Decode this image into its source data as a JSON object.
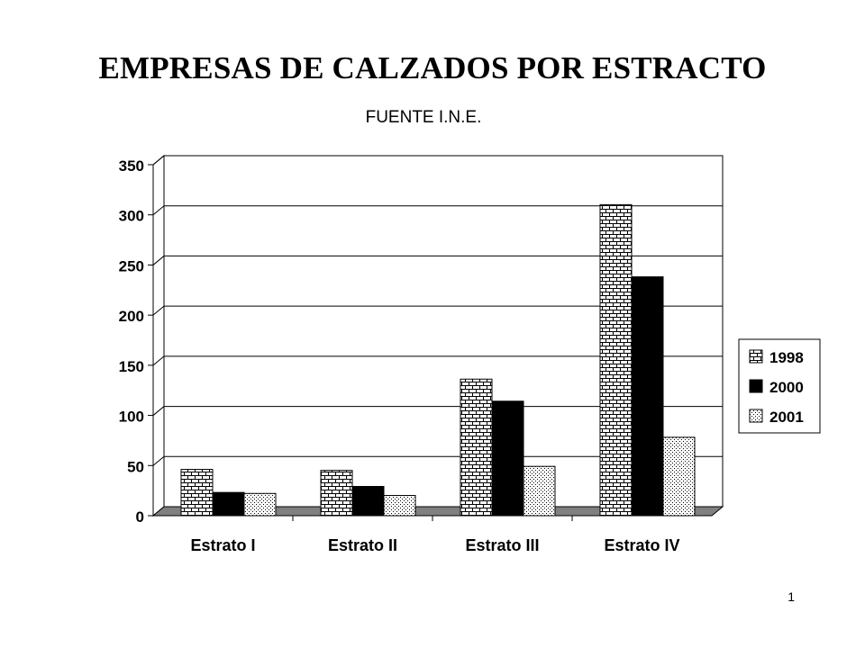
{
  "title": "EMPRESAS DE CALZADOS POR ESTRACTO",
  "subtitle": "FUENTE I.N.E.",
  "page_number": "1",
  "chart_data": {
    "type": "bar",
    "categories": [
      "Estrato I",
      "Estrato II",
      "Estrato III",
      "Estrato IV"
    ],
    "series": [
      {
        "name": "1998",
        "values": [
          39,
          38,
          129,
          303
        ],
        "pattern": "brick"
      },
      {
        "name": "2000",
        "values": [
          16,
          22,
          107,
          231
        ],
        "pattern": "solid"
      },
      {
        "name": "2001",
        "values": [
          15,
          13,
          42,
          71
        ],
        "pattern": "dots"
      }
    ],
    "ylim": [
      0,
      350
    ],
    "yticks": [
      0,
      50,
      100,
      150,
      200,
      250,
      300,
      350
    ],
    "grid": true,
    "legend": "right",
    "colors": {
      "line": "#000000",
      "floor": "#808080",
      "solid": "#000000",
      "fill": "#ffffff"
    }
  }
}
